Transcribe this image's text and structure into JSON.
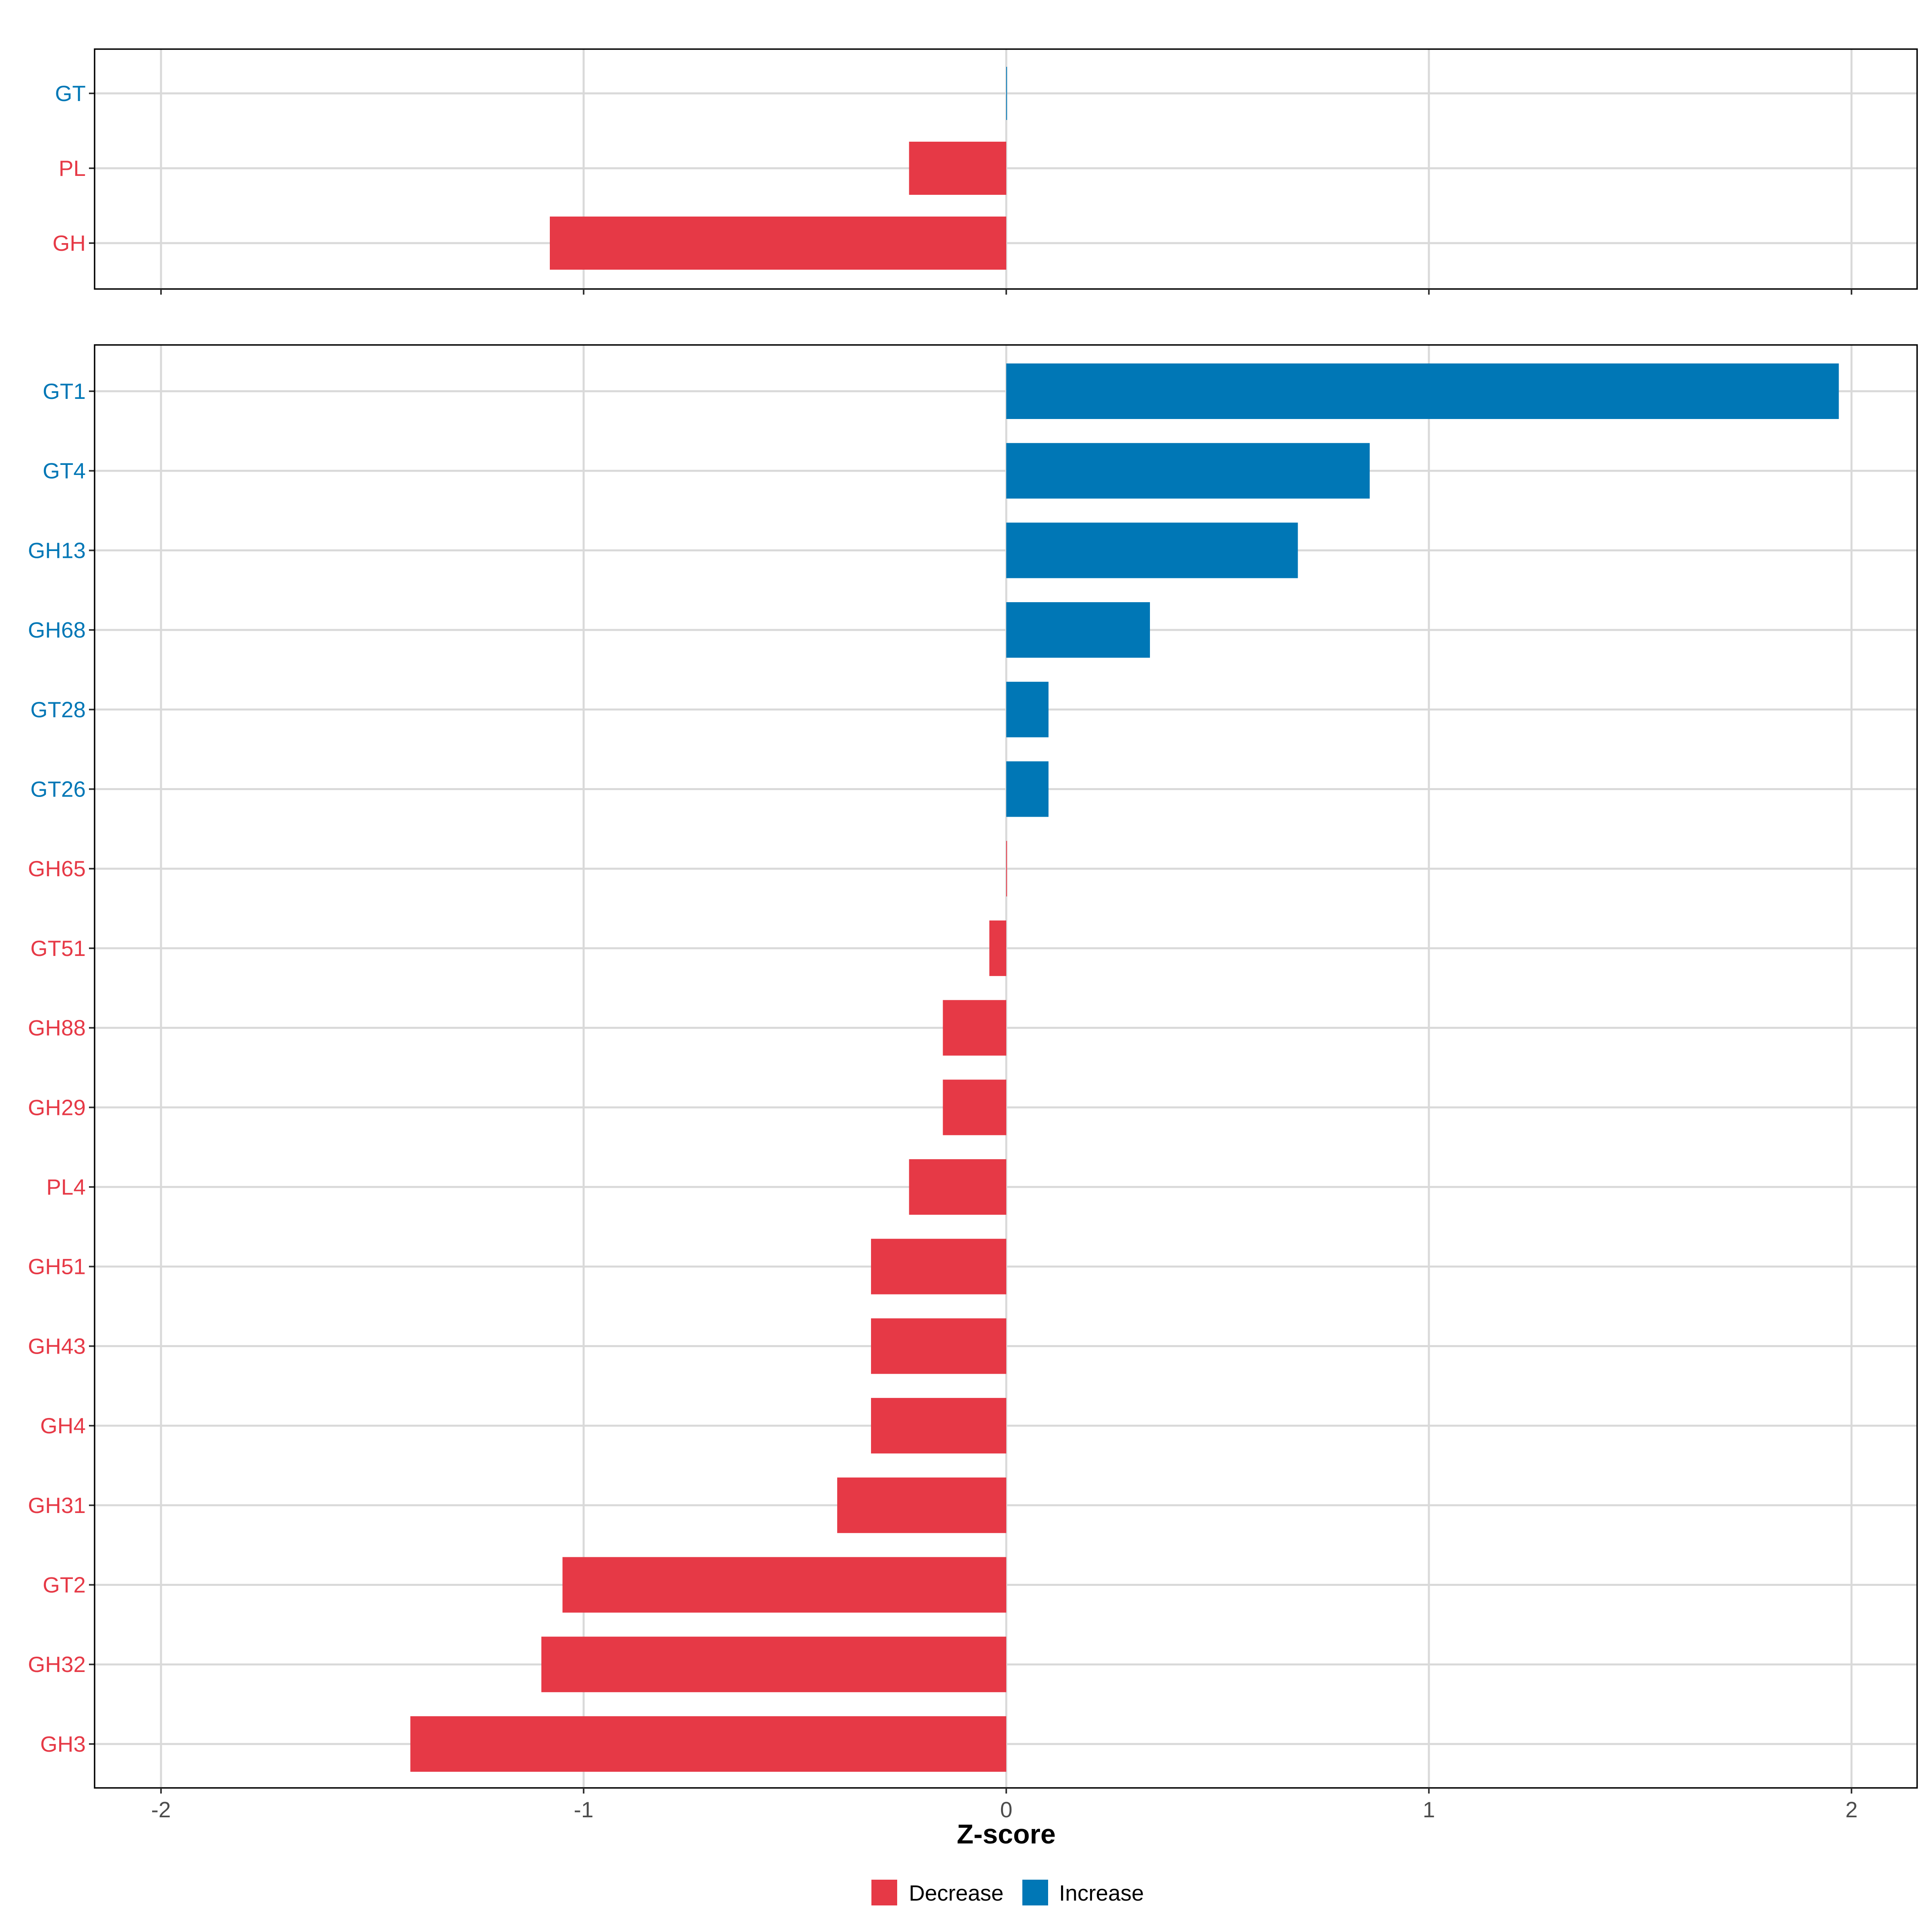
{
  "colors": {
    "decrease": "#E63946",
    "increase": "#0077B6",
    "grid": "#D9D9D9",
    "axis_text": "#4D4D4D"
  },
  "chart_data": [
    {
      "type": "bar",
      "orientation": "horizontal",
      "panel": "top",
      "categories": [
        "GT",
        "PL",
        "GH"
      ],
      "values": [
        0,
        -0.23,
        -1.08
      ],
      "directions": [
        "Increase",
        "Decrease",
        "Decrease"
      ],
      "xlim": [
        -2.2,
        2.16
      ],
      "grid": true
    },
    {
      "type": "bar",
      "orientation": "horizontal",
      "panel": "bottom",
      "categories": [
        "GT1",
        "GT4",
        "GH13",
        "GH68",
        "GT28",
        "GT26",
        "GH65",
        "GT51",
        "GH88",
        "GH29",
        "PL4",
        "GH51",
        "GH43",
        "GH4",
        "GH31",
        "GT2",
        "GH32",
        "GH3"
      ],
      "values": [
        1.97,
        0.86,
        0.69,
        0.34,
        0.1,
        0.1,
        0,
        -0.04,
        -0.15,
        -0.15,
        -0.23,
        -0.32,
        -0.32,
        -0.32,
        -0.4,
        -1.05,
        -1.1,
        -1.41
      ],
      "directions": [
        "Increase",
        "Increase",
        "Increase",
        "Increase",
        "Increase",
        "Increase",
        "Decrease",
        "Decrease",
        "Decrease",
        "Decrease",
        "Decrease",
        "Decrease",
        "Decrease",
        "Decrease",
        "Decrease",
        "Decrease",
        "Decrease",
        "Decrease"
      ],
      "xlim": [
        -2.2,
        2.16
      ],
      "xticks": [
        -2,
        -1,
        0,
        1,
        2
      ],
      "xtick_labels": [
        "-2",
        "-1",
        "0",
        "1",
        "2"
      ],
      "xlabel": "Z-score",
      "grid": true
    }
  ],
  "legend": {
    "position": "bottom",
    "items": [
      {
        "label": "Decrease",
        "key": "decrease"
      },
      {
        "label": "Increase",
        "key": "increase"
      }
    ]
  }
}
